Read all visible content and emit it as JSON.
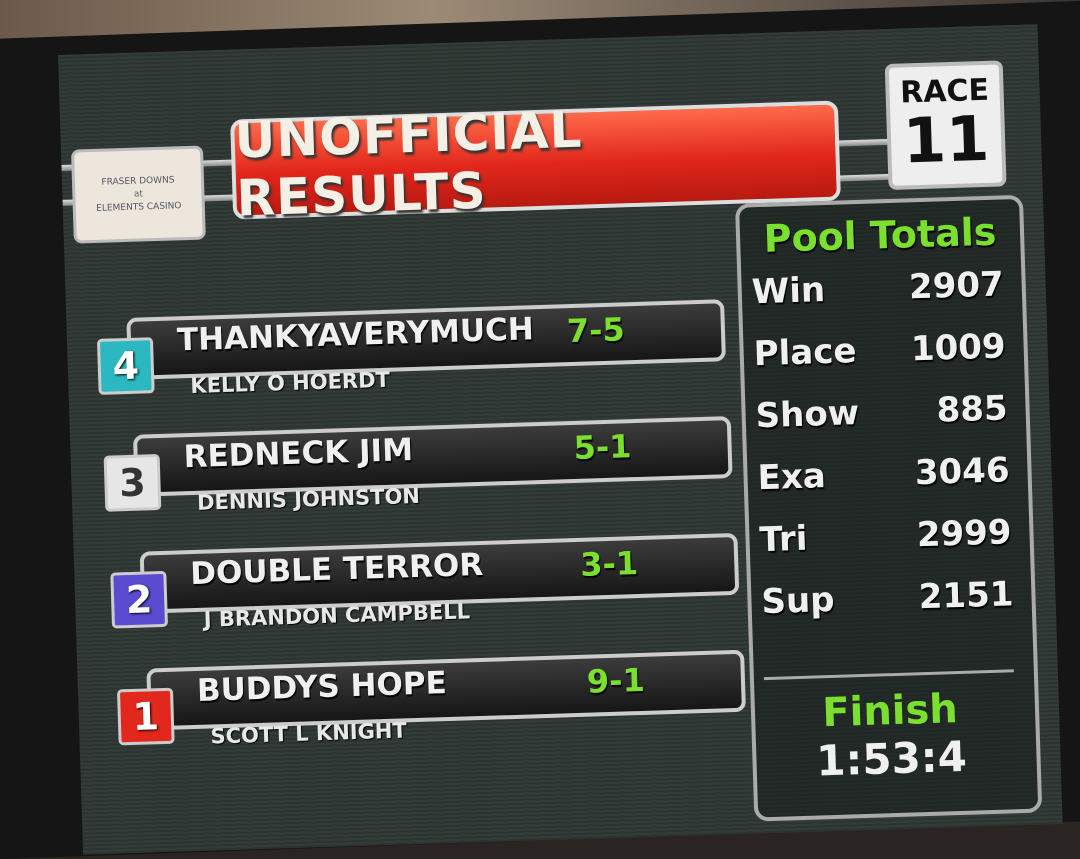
{
  "header": {
    "title": "UNOFFICIAL RESULTS",
    "race_label": "RACE",
    "race_number": "11"
  },
  "logo": {
    "line1": "FRASER DOWNS",
    "line2": "at",
    "line3": "ELEMENTS CASINO"
  },
  "results": [
    {
      "position": 1,
      "program": "4",
      "horse": "THANKYAVERYMUCH",
      "driver": "KELLY O HOERDT",
      "odds": "7-5",
      "color": "#2bb8c0"
    },
    {
      "position": 2,
      "program": "3",
      "horse": "REDNECK JIM",
      "driver": "DENNIS JOHNSTON",
      "odds": "5-1",
      "color": "#e6e6e6"
    },
    {
      "position": 3,
      "program": "2",
      "horse": "DOUBLE TERROR",
      "driver": "J BRANDON CAMPBELL",
      "odds": "3-1",
      "color": "#5a4bd0"
    },
    {
      "position": 4,
      "program": "1",
      "horse": "BUDDYS HOPE",
      "driver": "SCOTT L KNIGHT",
      "odds": "9-1",
      "color": "#e2281c"
    }
  ],
  "pool": {
    "title": "Pool Totals",
    "rows": [
      {
        "label": "Win",
        "value": "2907"
      },
      {
        "label": "Place",
        "value": "1009"
      },
      {
        "label": "Show",
        "value": "885"
      },
      {
        "label": "Exa",
        "value": "3046"
      },
      {
        "label": "Tri",
        "value": "2999"
      },
      {
        "label": "Sup",
        "value": "2151"
      }
    ],
    "finish_label": "Finish",
    "finish_time": "1:53:4"
  }
}
